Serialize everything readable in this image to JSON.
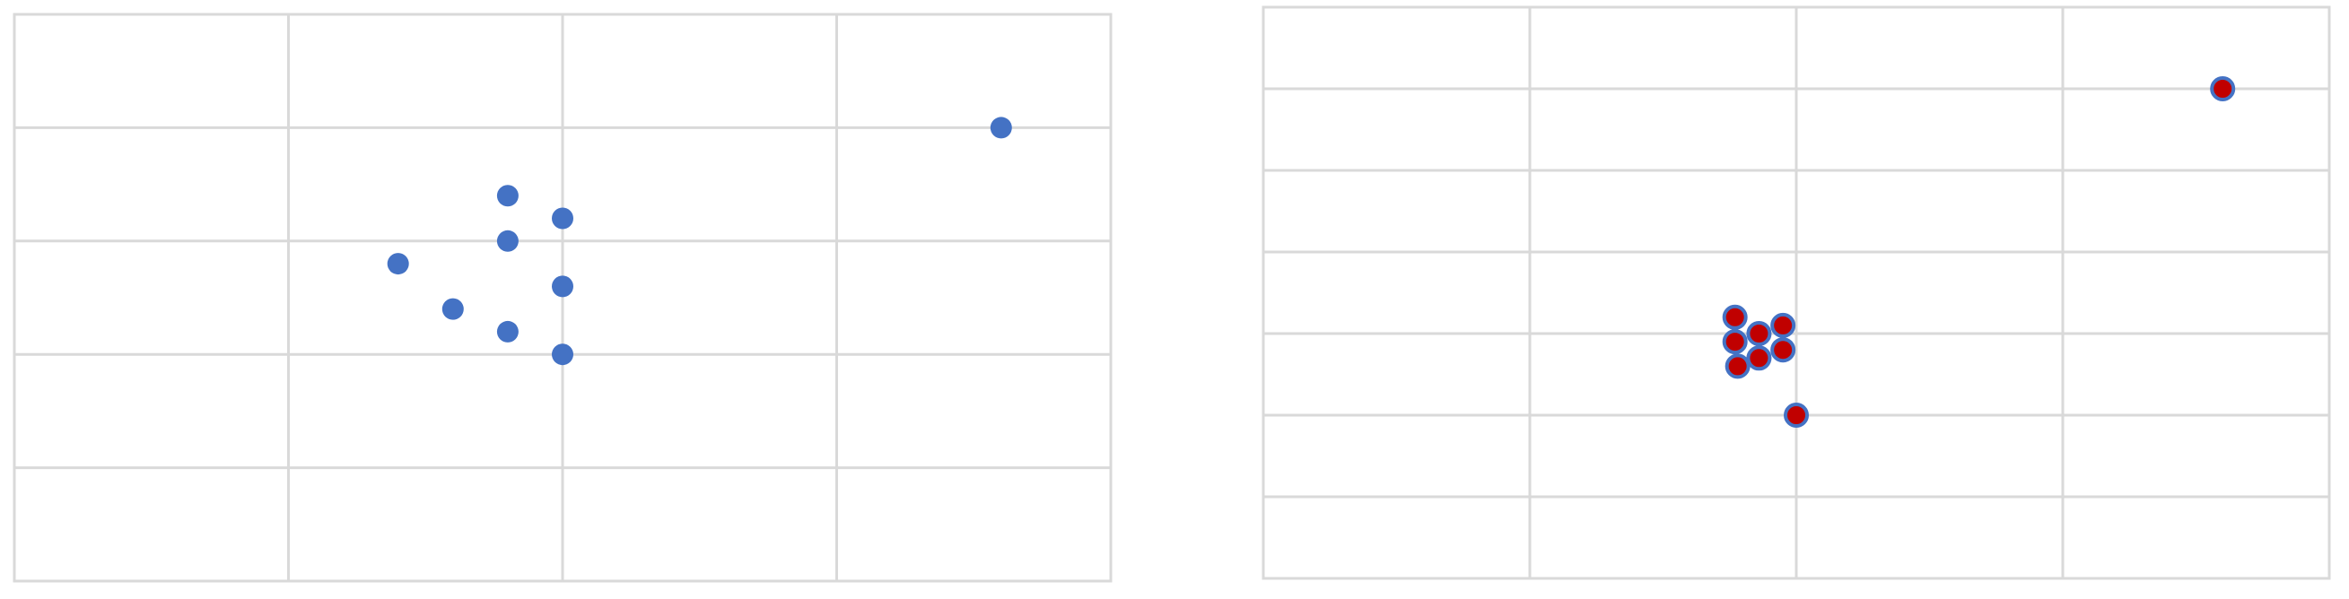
{
  "chart_data": [
    {
      "type": "scatter",
      "xlim": [
        0,
        4
      ],
      "ylim": [
        0,
        5
      ],
      "grid": true,
      "marker_color": "#4472c4",
      "marker_style": "filled",
      "points": [
        {
          "x": 3.6,
          "y": 4.0
        },
        {
          "x": 1.8,
          "y": 3.4
        },
        {
          "x": 2.0,
          "y": 3.2
        },
        {
          "x": 1.8,
          "y": 3.0
        },
        {
          "x": 1.4,
          "y": 2.8
        },
        {
          "x": 2.0,
          "y": 2.6
        },
        {
          "x": 1.6,
          "y": 2.4
        },
        {
          "x": 1.8,
          "y": 2.2
        },
        {
          "x": 2.0,
          "y": 2.0
        }
      ]
    },
    {
      "type": "scatter",
      "xlim": [
        0,
        4
      ],
      "ylim": [
        0,
        7
      ],
      "grid": true,
      "marker_color": "#c00000",
      "marker_outline": "#4472c4",
      "marker_style": "filled-outlined",
      "points": [
        {
          "x": 3.6,
          "y": 6.0
        },
        {
          "x": 1.77,
          "y": 3.2
        },
        {
          "x": 1.86,
          "y": 3.0
        },
        {
          "x": 1.95,
          "y": 3.1
        },
        {
          "x": 1.77,
          "y": 2.9
        },
        {
          "x": 1.95,
          "y": 2.8
        },
        {
          "x": 1.86,
          "y": 2.7
        },
        {
          "x": 1.78,
          "y": 2.6
        },
        {
          "x": 2.0,
          "y": 2.0
        }
      ]
    }
  ]
}
